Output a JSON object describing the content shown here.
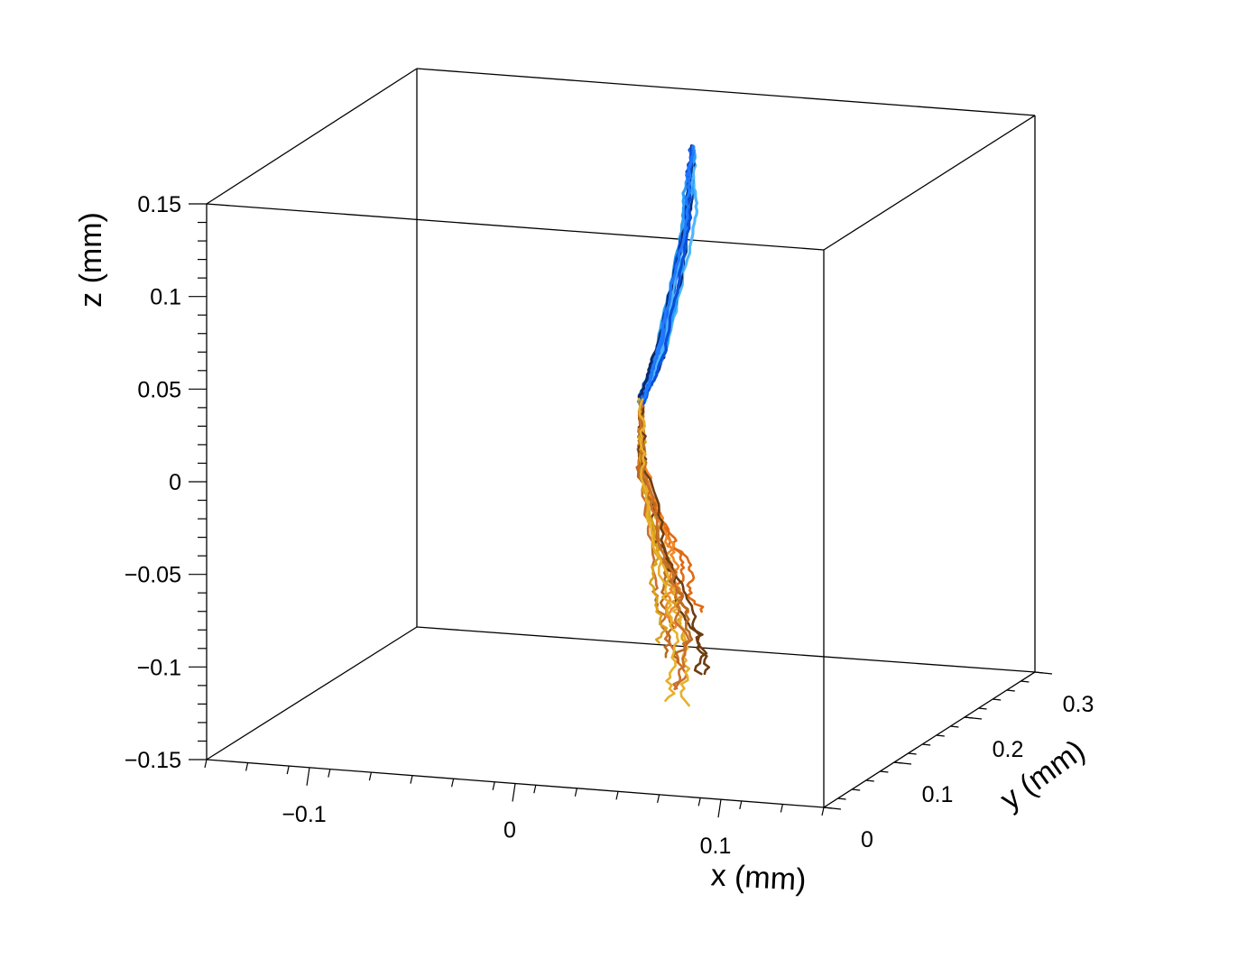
{
  "chart_data": {
    "type": "line",
    "projection": "3d-perspective-box",
    "xlabel": "x (mm)",
    "ylabel": "y (mm)",
    "zlabel": "z (mm)",
    "xlim": [
      -0.15,
      0.15
    ],
    "ylim": [
      0,
      0.3
    ],
    "zlim": [
      -0.15,
      0.15
    ],
    "x_ticks": [
      {
        "value": -0.1,
        "label": "−0.1"
      },
      {
        "value": 0,
        "label": "0"
      },
      {
        "value": 0.1,
        "label": "0.1"
      }
    ],
    "y_ticks": [
      {
        "value": 0,
        "label": "0"
      },
      {
        "value": 0.1,
        "label": "0.1"
      },
      {
        "value": 0.2,
        "label": "0.2"
      },
      {
        "value": 0.3,
        "label": "0.3"
      }
    ],
    "z_ticks": [
      {
        "value": 0.15,
        "label": "0.15"
      },
      {
        "value": 0.1,
        "label": "0.1"
      },
      {
        "value": 0.05,
        "label": "0.05"
      },
      {
        "value": 0,
        "label": "0"
      },
      {
        "value": -0.05,
        "label": "−0.05"
      },
      {
        "value": -0.1,
        "label": "−0.1"
      },
      {
        "value": -0.15,
        "label": "−0.15"
      }
    ],
    "grid": false,
    "legend": "none",
    "series": [
      {
        "color_family": "blue",
        "colors": [
          "#0b4fd8",
          "#1f78ff",
          "#2a9df4",
          "#4fb6ff",
          "#0a2a6b"
        ],
        "description_points": [
          [
            0.035,
            0.15,
            0.16
          ],
          [
            0.032,
            0.15,
            0.12
          ],
          [
            0.02,
            0.15,
            0.05
          ],
          [
            0.01,
            0.15,
            0.02
          ]
        ],
        "track_count": 12
      },
      {
        "color_family": "orange",
        "colors": [
          "#e06a12",
          "#f08a2a",
          "#d9a21c",
          "#b86a1e",
          "#6e3d10",
          "#c9702d",
          "#e8b02a"
        ],
        "description_points": [
          [
            0.01,
            0.15,
            0.02
          ],
          [
            0.01,
            0.15,
            -0.02
          ],
          [
            0.02,
            0.15,
            -0.07
          ],
          [
            0.025,
            0.15,
            -0.1
          ],
          [
            0.025,
            0.15,
            -0.13
          ]
        ],
        "track_count": 14
      }
    ]
  }
}
